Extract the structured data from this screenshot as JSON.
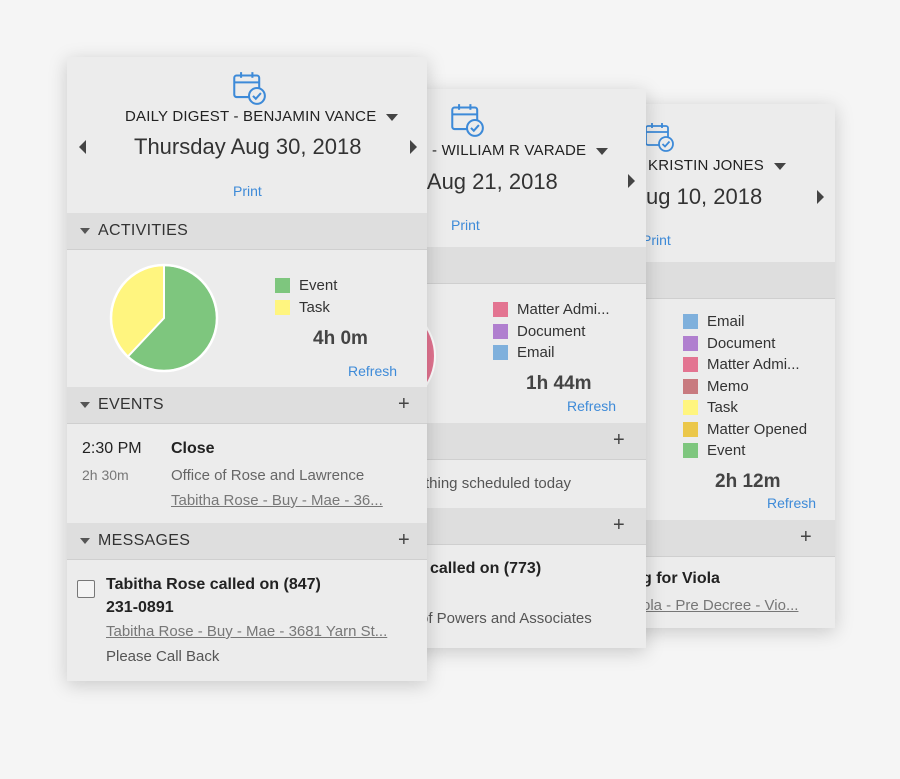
{
  "colors": {
    "event": "#7ec67e",
    "task": "#fff57f",
    "matter_admin": "#e37491",
    "document": "#b07fcf",
    "email": "#7fb0dc",
    "memo": "#c87a7f",
    "matter_opened": "#ebc74a",
    "link": "#3d8ad8"
  },
  "card3": {
    "user": "KRISTIN JONES",
    "date": "ug 10, 2018",
    "print": "Print",
    "legend": [
      {
        "label": "Email",
        "color": "#7fb0dc"
      },
      {
        "label": "Document",
        "color": "#b07fcf"
      },
      {
        "label": "Matter Admi...",
        "color": "#e37491"
      },
      {
        "label": "Memo",
        "color": "#c87a7f"
      },
      {
        "label": "Task",
        "color": "#fff57f"
      },
      {
        "label": "Matter Opened",
        "color": "#ebc74a"
      },
      {
        "label": "Event",
        "color": "#7ec67e"
      }
    ],
    "total": "2h 12m",
    "refresh": "Refresh",
    "message_title": "g for Viola",
    "message_link": "ola - Pre Decree - Vio..."
  },
  "card2": {
    "user": "- WILLIAM R VARADE",
    "date": "y Aug 21, 2018",
    "print": "Print",
    "legend": [
      {
        "label": "Matter Admi...",
        "color": "#e37491"
      },
      {
        "label": "Document",
        "color": "#b07fcf"
      },
      {
        "label": "Email",
        "color": "#7fb0dc"
      }
    ],
    "total": "1h 44m",
    "refresh": "Refresh",
    "events_empty": "thing scheduled today",
    "message_title": "called on (773)",
    "message_sub": "of Powers and Associates"
  },
  "card1": {
    "user": "DAILY DIGEST - BENJAMIN VANCE",
    "date": "Thursday Aug 30, 2018",
    "print": "Print",
    "activities_label": "ACTIVITIES",
    "events_label": "EVENTS",
    "messages_label": "MESSAGES",
    "pie": [
      {
        "label": "Event",
        "value": 0.62,
        "color": "#7ec67e"
      },
      {
        "label": "Task",
        "value": 0.38,
        "color": "#fff57f"
      }
    ],
    "legend": [
      {
        "label": "Event",
        "color": "#7ec67e"
      },
      {
        "label": "Task",
        "color": "#fff57f"
      }
    ],
    "total": "4h 0m",
    "refresh": "Refresh",
    "event": {
      "time": "2:30 PM",
      "duration": "2h 30m",
      "title": "Close",
      "location": "Office of Rose and Lawrence",
      "link": "Tabitha Rose - Buy - Mae - 36..."
    },
    "message": {
      "title_line1": "Tabitha Rose called on (847)",
      "title_line2": "231-0891",
      "link": "Tabitha Rose - Buy - Mae - 3681 Yarn St...",
      "note": "Please Call Back"
    }
  }
}
